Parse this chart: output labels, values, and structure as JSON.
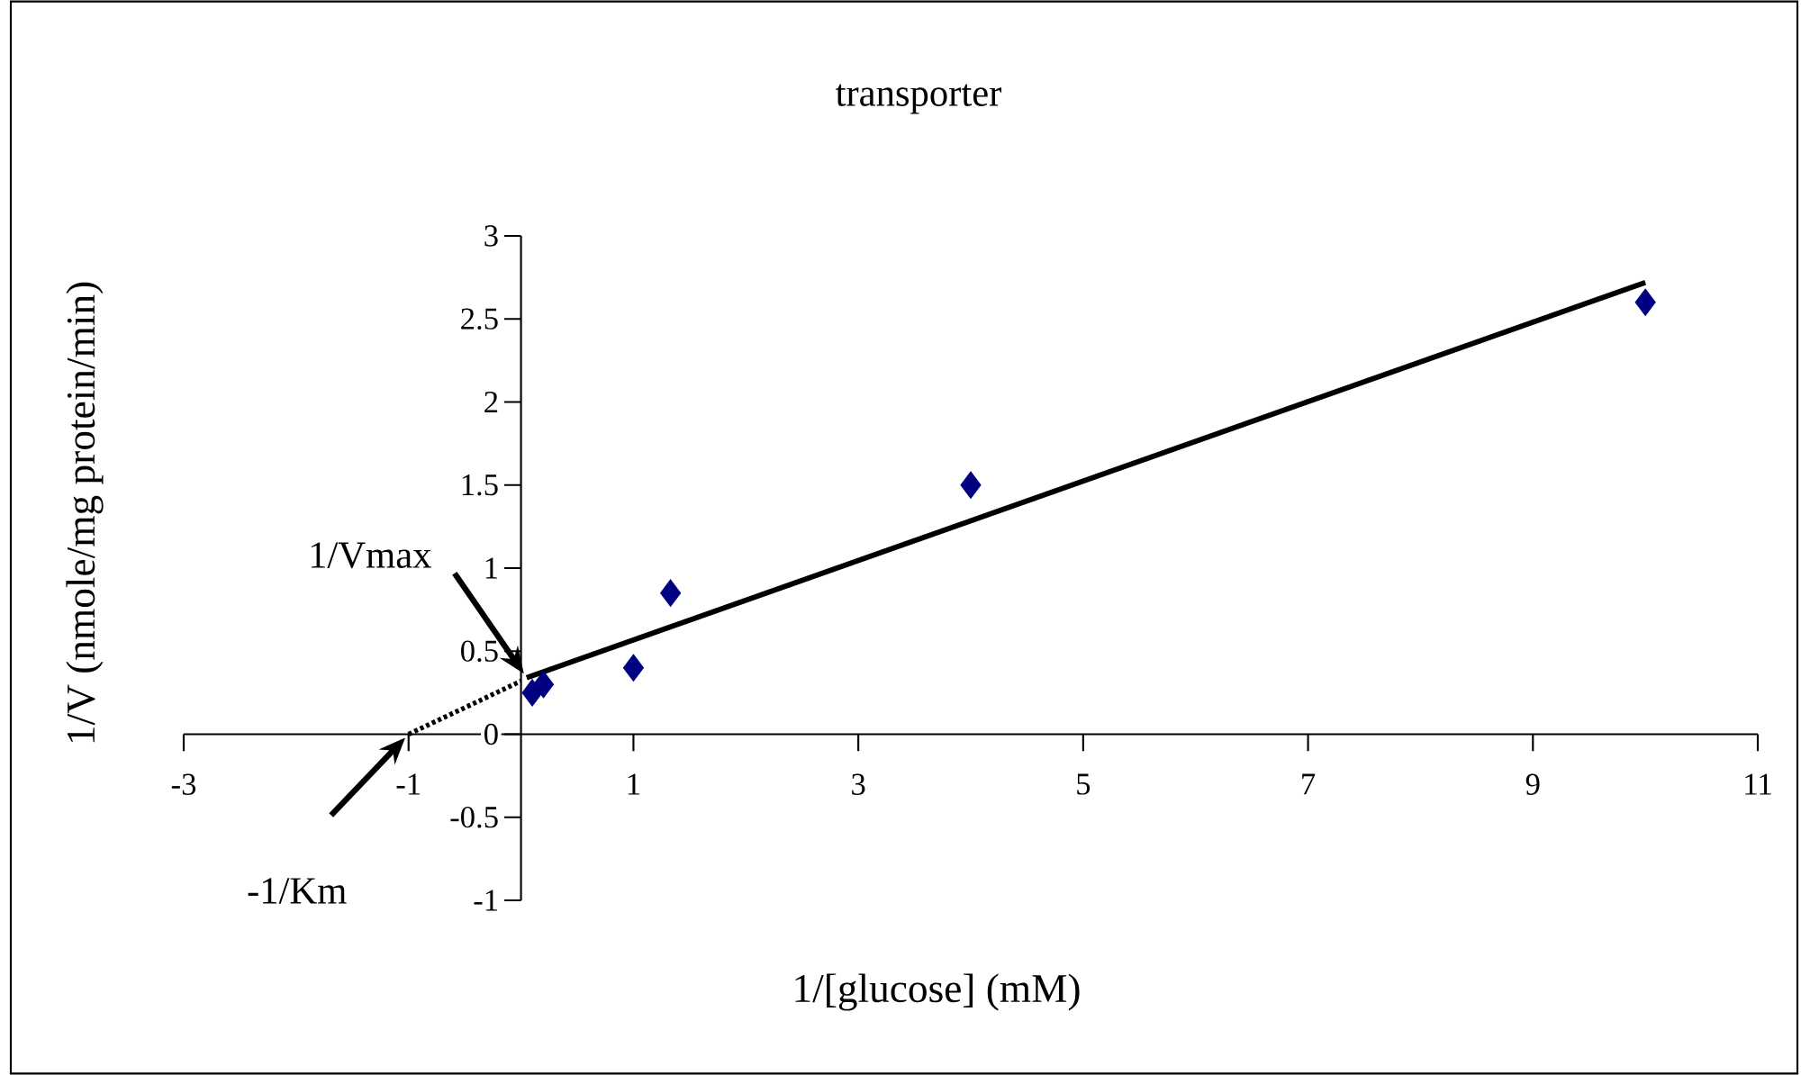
{
  "chart_data": {
    "type": "scatter",
    "title": "transporter",
    "xlabel": "1/[glucose] (mM)",
    "ylabel": "1/V (nmole/mg protein/min)",
    "xlim": [
      -3,
      11
    ],
    "xticks": [
      -3,
      -1,
      1,
      3,
      5,
      7,
      9,
      11
    ],
    "ylim": [
      -1,
      3
    ],
    "yticks": [
      -1,
      -0.5,
      0,
      0.5,
      1,
      1.5,
      2,
      2.5,
      3
    ],
    "series": [
      {
        "type": "scatter",
        "color": "#000080",
        "marker": "diamond",
        "x": [
          0.1,
          0.2,
          1,
          1.33,
          4,
          10
        ],
        "values": [
          0.25,
          0.3,
          0.4,
          0.85,
          1.5,
          2.6
        ]
      },
      {
        "type": "line",
        "color": "#000000",
        "line_style": "solid",
        "x": [
          0.05,
          10
        ],
        "values": [
          0.34,
          2.72
        ]
      },
      {
        "type": "line",
        "color": "#000000",
        "line_style": "dotted",
        "x": [
          -1,
          0
        ],
        "values": [
          0.0,
          0.32
        ]
      }
    ],
    "annotations": [
      "1/Vmax",
      "-1/Km"
    ]
  }
}
